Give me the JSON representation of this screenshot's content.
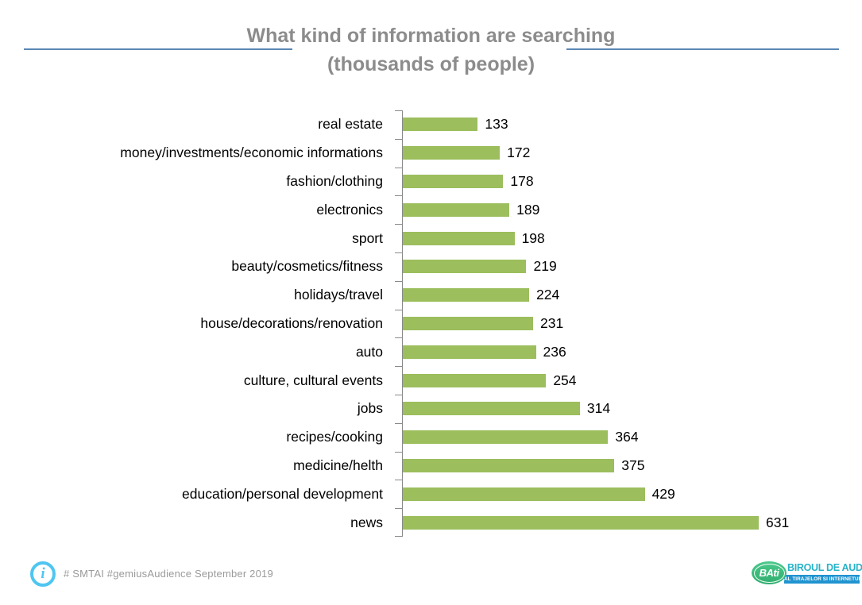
{
  "title": {
    "line1": "What kind of information are searching",
    "line2": "(thousands of people)"
  },
  "chart_data": {
    "type": "bar",
    "orientation": "horizontal",
    "title": "What kind of information are searching (thousands of people)",
    "categories": [
      "real estate",
      "money/investments/economic informations",
      "fashion/clothing",
      "electronics",
      "sport",
      "beauty/cosmetics/fitness",
      "holidays/travel",
      "house/decorations/renovation",
      "auto",
      "culture, cultural events",
      "jobs",
      "recipes/cooking",
      "medicine/helth",
      "education/personal development",
      "news"
    ],
    "values": [
      133,
      172,
      178,
      189,
      198,
      219,
      224,
      231,
      236,
      254,
      314,
      364,
      375,
      429,
      631
    ],
    "xlabel": "",
    "ylabel": "",
    "xlim": [
      0,
      650
    ],
    "grid": false,
    "legend": false,
    "data_labels": true,
    "bar_color": "#9cbe5d"
  },
  "colors": {
    "bar": "#9cbe5d",
    "axis": "#898989",
    "title_text": "#8c8c8c",
    "title_rule": "#5b87b5",
    "info_icon": "#4fc6f1",
    "footer_text": "#9a9a9a",
    "logo_teal": "#29b3c8",
    "logo_blue": "#2093d0",
    "logo_green": "#3ab878"
  },
  "footer": {
    "info_glyph": "i",
    "source_text": "# SMTAI #gemiusAudience September  2019"
  },
  "logo": {
    "badge": "BAti",
    "name": "BIROUL DE AUDIT",
    "tagline": "AL TIRAJELOR SI INTERNETULUI"
  }
}
